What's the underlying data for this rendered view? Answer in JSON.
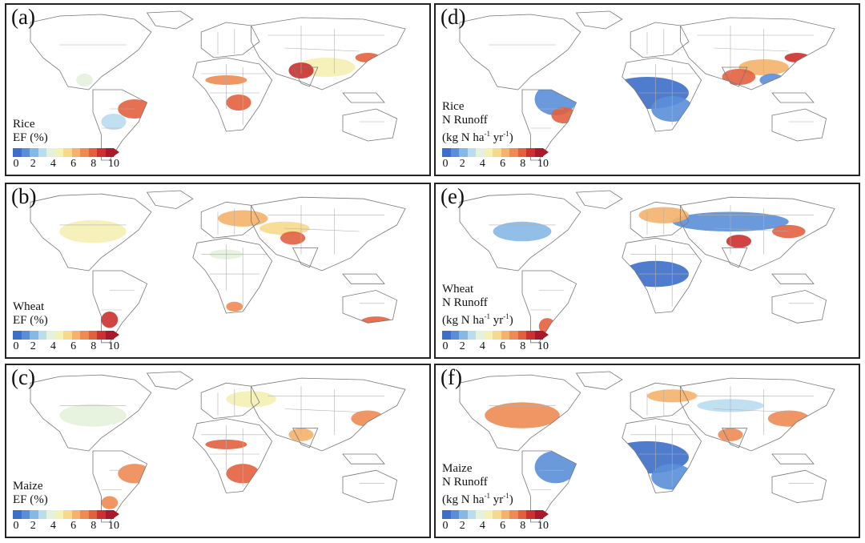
{
  "figure": {
    "panels": [
      {
        "id": "a",
        "label": "(a)",
        "crop": "Rice",
        "metric": "EF (%)",
        "metric_lines": [
          "EF (%)"
        ]
      },
      {
        "id": "b",
        "label": "(b)",
        "crop": "Wheat",
        "metric": "EF (%)",
        "metric_lines": [
          "EF (%)"
        ]
      },
      {
        "id": "c",
        "label": "(c)",
        "crop": "Maize",
        "metric": "EF (%)",
        "metric_lines": [
          "EF (%)"
        ]
      },
      {
        "id": "d",
        "label": "(d)",
        "crop": "Rice",
        "metric": "N Runoff",
        "unit_prefix": "(kg N ha",
        "unit_mid": " yr",
        "unit_suffix": ")",
        "exp": "-1"
      },
      {
        "id": "e",
        "label": "(e)",
        "crop": "Wheat",
        "metric": "N Runoff",
        "unit_prefix": "(kg N ha",
        "unit_mid": " yr",
        "unit_suffix": ")",
        "exp": "-1"
      },
      {
        "id": "f",
        "label": "(f)",
        "crop": "Maize",
        "metric": "N Runoff",
        "unit_prefix": "(kg N ha",
        "unit_mid": " yr",
        "unit_suffix": ")",
        "exp": "-1"
      }
    ],
    "legend": {
      "ticks": [
        "0",
        "2",
        "4",
        "6",
        "8",
        "10"
      ],
      "colors": [
        "#3d6ec9",
        "#5a8fd8",
        "#86b8e6",
        "#b9dcef",
        "#e4f1dc",
        "#f5f0b4",
        "#f7d98c",
        "#f4b26a",
        "#ee8a53",
        "#e2603f",
        "#cc3030",
        "#a8192a"
      ],
      "overflow_color": "#a8192a"
    },
    "colors": {
      "coast": "#777777",
      "border": "#b0b0b0",
      "panel_border": "#222222"
    }
  }
}
